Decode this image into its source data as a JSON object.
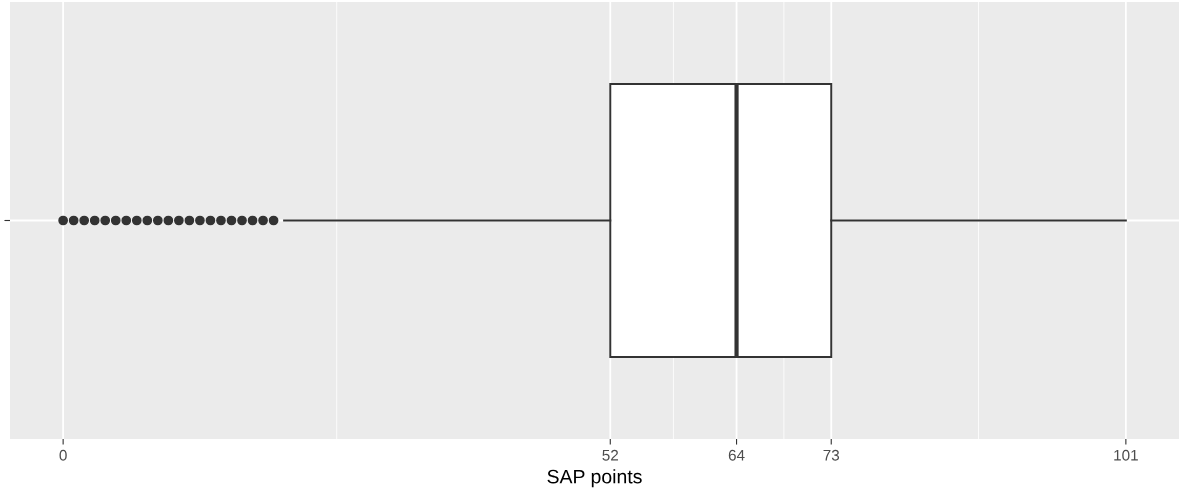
{
  "chart_data": {
    "type": "box",
    "orientation": "horizontal",
    "xlabel": "SAP points",
    "categories": [
      null
    ],
    "boxes": [
      {
        "low": 21,
        "q1": 52,
        "median": 64,
        "q3": 73,
        "high": 101,
        "outliers": [
          0,
          1,
          2,
          3,
          4,
          5,
          6,
          7,
          8,
          9,
          10,
          11,
          12,
          13,
          14,
          15,
          16,
          17,
          18,
          19,
          20
        ]
      }
    ],
    "xlim": [
      -5.05,
      106.05
    ],
    "xticks": [
      0,
      52,
      64,
      73,
      101
    ],
    "grid": true
  }
}
